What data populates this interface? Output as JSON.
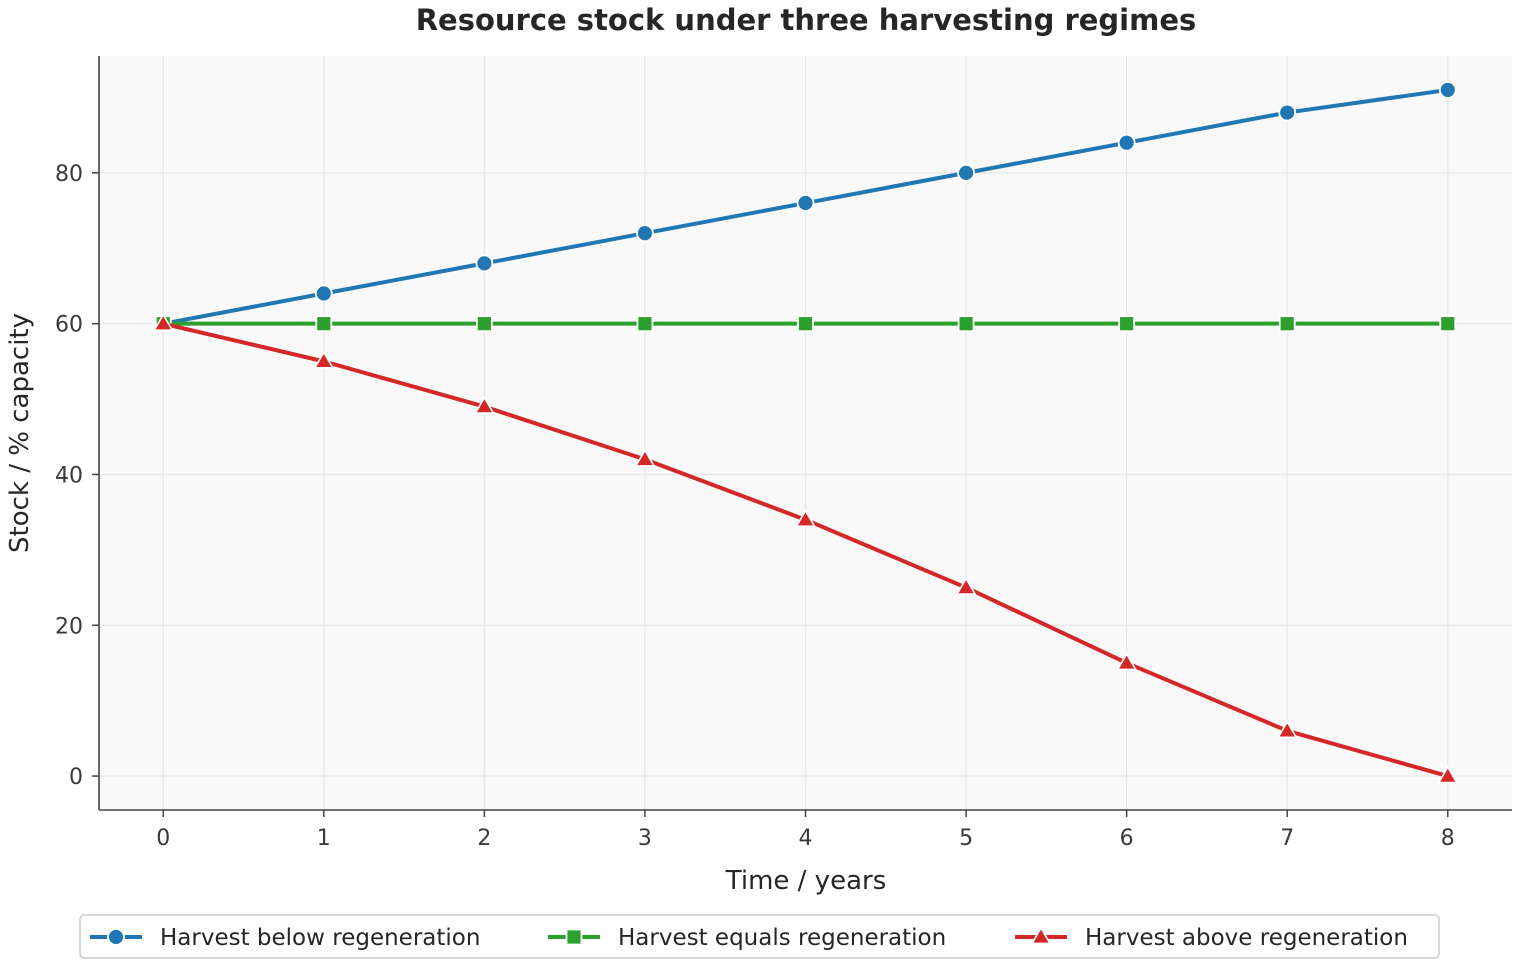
{
  "chart_data": {
    "type": "line",
    "title": "Resource stock under three harvesting regimes",
    "xlabel": "Time / years",
    "ylabel": "Stock / % capacity",
    "x": [
      0,
      1,
      2,
      3,
      4,
      5,
      6,
      7,
      8
    ],
    "xticks": [
      0,
      1,
      2,
      3,
      4,
      5,
      6,
      7,
      8
    ],
    "yticks": [
      0,
      20,
      40,
      60,
      80
    ],
    "xlim": [
      -0.4,
      8.4
    ],
    "ylim": [
      -4.5,
      95.5
    ],
    "grid": true,
    "legend_position": "bottom-center",
    "series": [
      {
        "name": "Harvest below regeneration",
        "color": "#1f77b4",
        "marker": "circle",
        "values": [
          60,
          64,
          68,
          72,
          76,
          80,
          84,
          88,
          91
        ]
      },
      {
        "name": "Harvest equals regeneration",
        "color": "#2ca02c",
        "marker": "square",
        "values": [
          60,
          60,
          60,
          60,
          60,
          60,
          60,
          60,
          60
        ]
      },
      {
        "name": "Harvest above regeneration",
        "color": "#d62728",
        "marker": "triangle",
        "values": [
          60,
          55,
          49,
          42,
          34,
          25,
          15,
          6,
          0
        ]
      }
    ]
  }
}
